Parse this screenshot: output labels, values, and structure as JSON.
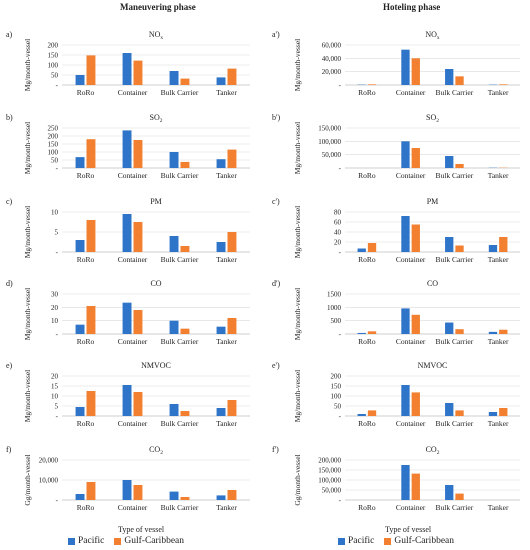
{
  "header": {
    "left_title": "Maneuvering phase",
    "right_title": "Hoteling phase"
  },
  "colors": {
    "pacific": "#2e74c8",
    "gulf": "#f28030"
  },
  "legend": {
    "pacific": "Pacific",
    "gulf": "Gulf-Caribbean"
  },
  "xlabel": "Type of vessel",
  "chart_data": [
    {
      "type": "bar",
      "panel": "a)",
      "title": "NOx",
      "title_sub": "x",
      "ylabel": "Mg/month-vessel",
      "ylim": [
        0,
        200
      ],
      "yticks": [
        0,
        50,
        100,
        150,
        200
      ],
      "ytick_labels": [
        "-",
        "50",
        "100",
        "150",
        "200"
      ],
      "categories": [
        "RoRo",
        "Container",
        "Bulk Carrier",
        "Tanker"
      ],
      "series": [
        {
          "name": "Pacific",
          "values": [
            50,
            160,
            70,
            38
          ]
        },
        {
          "name": "Gulf-Caribbean",
          "values": [
            148,
            122,
            32,
            82
          ]
        }
      ]
    },
    {
      "type": "bar",
      "panel": "a')",
      "title": "NOx",
      "title_sub": "x",
      "ylabel": "Mg/month-vessel",
      "ylim": [
        0,
        60000
      ],
      "yticks": [
        0,
        20000,
        40000,
        60000
      ],
      "ytick_labels": [
        "-",
        "20,000",
        "40,000",
        "60,000"
      ],
      "categories": [
        "RoRo",
        "Container",
        "Bulk Carrier",
        "Tanker"
      ],
      "series": [
        {
          "name": "Pacific",
          "values": [
            500,
            53000,
            24000,
            500
          ]
        },
        {
          "name": "Gulf-Caribbean",
          "values": [
            1000,
            40000,
            13000,
            1000
          ]
        }
      ]
    },
    {
      "type": "bar",
      "panel": "b)",
      "title": "SO2",
      "title_sub": "2",
      "ylabel": "Mg/month-vessel",
      "ylim": [
        0,
        250
      ],
      "yticks": [
        0,
        50,
        100,
        150,
        200,
        250
      ],
      "ytick_labels": [
        "-",
        "50",
        "100",
        "150",
        "200",
        "250"
      ],
      "categories": [
        "RoRo",
        "Container",
        "Bulk Carrier",
        "Tanker"
      ],
      "series": [
        {
          "name": "Pacific",
          "values": [
            68,
            235,
            100,
            55
          ]
        },
        {
          "name": "Gulf-Caribbean",
          "values": [
            180,
            175,
            38,
            115
          ]
        }
      ]
    },
    {
      "type": "bar",
      "panel": "b')",
      "title": "SO2",
      "title_sub": "2",
      "ylabel": "Mg/month-vessel",
      "ylim": [
        0,
        150000
      ],
      "yticks": [
        0,
        50000,
        100000,
        150000
      ],
      "ytick_labels": [
        "-",
        "50,000",
        "100,000",
        "150,000"
      ],
      "categories": [
        "RoRo",
        "Container",
        "Bulk Carrier",
        "Tanker"
      ],
      "series": [
        {
          "name": "Pacific",
          "values": [
            0,
            100000,
            45000,
            1000
          ]
        },
        {
          "name": "Gulf-Caribbean",
          "values": [
            0,
            75000,
            15000,
            1000
          ]
        }
      ]
    },
    {
      "type": "bar",
      "panel": "c)",
      "title": "PM",
      "title_sub": "",
      "ylabel": "Mg/month-vessel",
      "ylim": [
        0,
        10
      ],
      "yticks": [
        0,
        5,
        10
      ],
      "ytick_labels": [
        "-",
        "5",
        "10"
      ],
      "categories": [
        "RoRo",
        "Container",
        "Bulk Carrier",
        "Tanker"
      ],
      "series": [
        {
          "name": "Pacific",
          "values": [
            3,
            9.5,
            4,
            2.5
          ]
        },
        {
          "name": "Gulf-Caribbean",
          "values": [
            8,
            7.5,
            1.5,
            5
          ]
        }
      ]
    },
    {
      "type": "bar",
      "panel": "c')",
      "title": "PM",
      "title_sub": "",
      "ylabel": "Mg/month-vessel",
      "ylim": [
        0,
        80
      ],
      "yticks": [
        0,
        20,
        40,
        60,
        80
      ],
      "ytick_labels": [
        "-",
        "20",
        "40",
        "60",
        "80"
      ],
      "categories": [
        "RoRo",
        "Container",
        "Bulk Carrier",
        "Tanker"
      ],
      "series": [
        {
          "name": "Pacific",
          "values": [
            7,
            72,
            30,
            14
          ]
        },
        {
          "name": "Gulf-Caribbean",
          "values": [
            18,
            55,
            13,
            30
          ]
        }
      ]
    },
    {
      "type": "bar",
      "panel": "d)",
      "title": "CO",
      "title_sub": "",
      "ylabel": "Mg/month-vessel",
      "ylim": [
        0,
        30
      ],
      "yticks": [
        0,
        10,
        20,
        30
      ],
      "ytick_labels": [
        "-",
        "10",
        "20",
        "30"
      ],
      "categories": [
        "RoRo",
        "Container",
        "Bulk Carrier",
        "Tanker"
      ],
      "series": [
        {
          "name": "Pacific",
          "values": [
            7,
            23.5,
            10,
            5.5
          ]
        },
        {
          "name": "Gulf-Caribbean",
          "values": [
            21,
            18,
            4,
            12
          ]
        }
      ]
    },
    {
      "type": "bar",
      "panel": "d')",
      "title": "CO",
      "title_sub": "",
      "ylabel": "Mg/month-vessel",
      "ylim": [
        0,
        1500
      ],
      "yticks": [
        0,
        500,
        1000,
        1500
      ],
      "ytick_labels": [
        "-",
        "500",
        "1000",
        "1500"
      ],
      "categories": [
        "RoRo",
        "Container",
        "Bulk Carrier",
        "Tanker"
      ],
      "series": [
        {
          "name": "Pacific",
          "values": [
            40,
            960,
            430,
            80
          ]
        },
        {
          "name": "Gulf-Caribbean",
          "values": [
            100,
            720,
            180,
            160
          ]
        }
      ]
    },
    {
      "type": "bar",
      "panel": "e)",
      "title": "NMVOC",
      "title_sub": "",
      "ylabel": "Mg/month-vessel",
      "ylim": [
        0,
        20
      ],
      "yticks": [
        0,
        5,
        10,
        15,
        20
      ],
      "ytick_labels": [
        "-",
        "5",
        "10",
        "15",
        "20"
      ],
      "categories": [
        "RoRo",
        "Container",
        "Bulk Carrier",
        "Tanker"
      ],
      "series": [
        {
          "name": "Pacific",
          "values": [
            4.5,
            15.5,
            6,
            4
          ]
        },
        {
          "name": "Gulf-Caribbean",
          "values": [
            12.5,
            12,
            2.5,
            8
          ]
        }
      ]
    },
    {
      "type": "bar",
      "panel": "e')",
      "title": "NMVOC",
      "title_sub": "",
      "ylabel": "Mg/month-vessel",
      "ylim": [
        0,
        200
      ],
      "yticks": [
        0,
        50,
        100,
        150,
        200
      ],
      "ytick_labels": [
        "-",
        "50",
        "100",
        "150",
        "200"
      ],
      "categories": [
        "RoRo",
        "Container",
        "Bulk Carrier",
        "Tanker"
      ],
      "series": [
        {
          "name": "Pacific",
          "values": [
            10,
            155,
            65,
            20
          ]
        },
        {
          "name": "Gulf-Caribbean",
          "values": [
            28,
            118,
            28,
            40
          ]
        }
      ]
    },
    {
      "type": "bar",
      "panel": "f)",
      "title": "CO2",
      "title_sub": "2",
      "ylabel": "Gg/month-vessel",
      "ylim": [
        0,
        20000
      ],
      "yticks": [
        0,
        10000,
        20000
      ],
      "ytick_labels": [
        "-",
        "10,000",
        "20,000"
      ],
      "categories": [
        "RoRo",
        "Container",
        "Bulk Carrier",
        "Tanker"
      ],
      "series": [
        {
          "name": "Pacific",
          "values": [
            3000,
            10000,
            4200,
            2300
          ]
        },
        {
          "name": "Gulf-Caribbean",
          "values": [
            9000,
            7500,
            1500,
            5000
          ]
        }
      ]
    },
    {
      "type": "bar",
      "panel": "f')",
      "title": "CO2",
      "title_sub": "2",
      "ylabel": "Gg/month-vessel",
      "ylim": [
        0,
        200000
      ],
      "yticks": [
        0,
        50000,
        100000,
        150000,
        200000
      ],
      "ytick_labels": [
        "-",
        "50,000",
        "100,000",
        "150,000",
        "200,000"
      ],
      "categories": [
        "RoRo",
        "Container",
        "Bulk Carrier",
        "Tanker"
      ],
      "series": [
        {
          "name": "Pacific",
          "values": [
            0,
            175000,
            75000,
            0
          ]
        },
        {
          "name": "Gulf-Caribbean",
          "values": [
            0,
            132000,
            32000,
            0
          ]
        }
      ]
    }
  ]
}
